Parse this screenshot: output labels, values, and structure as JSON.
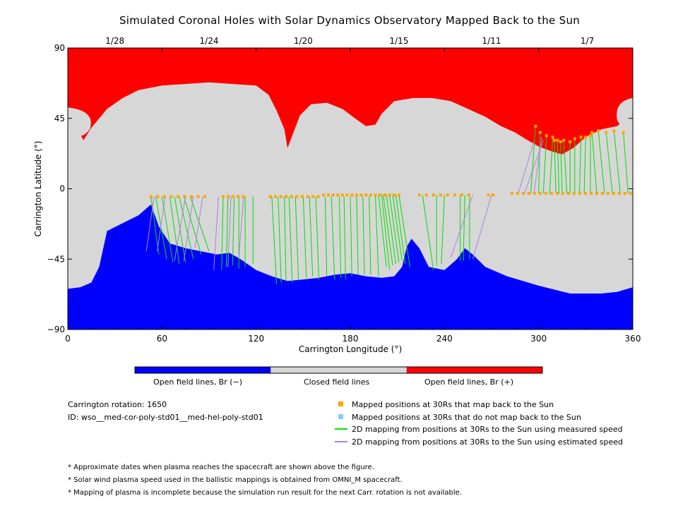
{
  "chart_data": {
    "type": "map",
    "title": "Simulated Coronal Holes with Solar Dynamics Observatory Mapped Back to the Sun",
    "xlabel": "Carrington Longitude (°)",
    "ylabel": "Carrington Latitude (°)",
    "xlim": [
      0,
      360
    ],
    "ylim": [
      -90,
      90
    ],
    "x_ticks": [
      "0",
      "60",
      "120",
      "180",
      "240",
      "300",
      "360"
    ],
    "y_ticks": [
      "90",
      "45",
      "0",
      "−45",
      "−90"
    ],
    "top_axis": {
      "dates": [
        {
          "label": "1/28",
          "lon": 30
        },
        {
          "label": "1/24",
          "lon": 90
        },
        {
          "label": "1/20",
          "lon": 150
        },
        {
          "label": "1/15",
          "lon": 211
        },
        {
          "label": "1/11",
          "lon": 270
        },
        {
          "label": "1/7",
          "lon": 331
        }
      ]
    },
    "regions": {
      "north_boundary": [
        [
          0,
          52
        ],
        [
          5,
          40
        ],
        [
          10,
          31
        ],
        [
          15,
          39
        ],
        [
          25,
          51
        ],
        [
          35,
          58
        ],
        [
          45,
          63
        ],
        [
          60,
          66
        ],
        [
          75,
          67
        ],
        [
          90,
          68
        ],
        [
          105,
          67
        ],
        [
          120,
          66
        ],
        [
          128,
          60
        ],
        [
          133,
          50
        ],
        [
          138,
          38
        ],
        [
          140,
          26
        ],
        [
          143,
          34
        ],
        [
          148,
          47
        ],
        [
          155,
          54
        ],
        [
          165,
          55
        ],
        [
          175,
          51
        ],
        [
          183,
          45
        ],
        [
          190,
          40
        ],
        [
          196,
          41
        ],
        [
          200,
          48
        ],
        [
          208,
          56
        ],
        [
          220,
          58
        ],
        [
          232,
          58
        ],
        [
          244,
          56
        ],
        [
          255,
          51
        ],
        [
          266,
          46
        ],
        [
          276,
          40
        ],
        [
          285,
          36
        ],
        [
          293,
          31
        ],
        [
          300,
          27
        ],
        [
          308,
          24
        ],
        [
          315,
          22
        ],
        [
          322,
          26
        ],
        [
          330,
          33
        ],
        [
          340,
          38
        ],
        [
          350,
          40
        ],
        [
          355,
          44
        ],
        [
          358,
          50
        ],
        [
          360,
          52
        ]
      ],
      "south_boundary": [
        [
          0,
          -64
        ],
        [
          8,
          -63
        ],
        [
          15,
          -60
        ],
        [
          20,
          -50
        ],
        [
          25,
          -27
        ],
        [
          35,
          -22
        ],
        [
          45,
          -17
        ],
        [
          53,
          -10
        ],
        [
          58,
          -24
        ],
        [
          65,
          -35
        ],
        [
          75,
          -38
        ],
        [
          85,
          -40
        ],
        [
          95,
          -42
        ],
        [
          103,
          -41
        ],
        [
          110,
          -45
        ],
        [
          120,
          -52
        ],
        [
          130,
          -56
        ],
        [
          140,
          -59
        ],
        [
          150,
          -58
        ],
        [
          160,
          -57
        ],
        [
          170,
          -55
        ],
        [
          180,
          -54
        ],
        [
          190,
          -56
        ],
        [
          200,
          -57
        ],
        [
          208,
          -56
        ],
        [
          213,
          -50
        ],
        [
          216,
          -37
        ],
        [
          219,
          -32
        ],
        [
          224,
          -38
        ],
        [
          230,
          -50
        ],
        [
          240,
          -52
        ],
        [
          248,
          -45
        ],
        [
          253,
          -38
        ],
        [
          258,
          -42
        ],
        [
          266,
          -50
        ],
        [
          280,
          -56
        ],
        [
          300,
          -62
        ],
        [
          320,
          -67
        ],
        [
          340,
          -67
        ],
        [
          350,
          -66
        ],
        [
          360,
          -63
        ]
      ],
      "colors": {
        "positive": "#ff0000",
        "closed": "#d7d7d7",
        "negative": "#0000ff"
      }
    },
    "mapped_points_lat": -5,
    "measured_mappings": [
      [
        58,
        -42
      ],
      [
        63,
        -45
      ],
      [
        67,
        -47
      ],
      [
        71,
        -48
      ],
      [
        75,
        -47
      ],
      [
        80,
        -45
      ],
      [
        85,
        -42
      ],
      [
        90,
        -40
      ],
      [
        98,
        -52
      ],
      [
        101,
        -50
      ],
      [
        105,
        -49
      ],
      [
        109,
        -51
      ],
      [
        113,
        -50
      ],
      [
        118,
        -48
      ],
      [
        133,
        -61
      ],
      [
        136,
        -60
      ],
      [
        139,
        -59
      ],
      [
        143,
        -60
      ],
      [
        147,
        -58
      ],
      [
        152,
        -57
      ],
      [
        156,
        -56
      ],
      [
        160,
        -58
      ],
      [
        165,
        -56
      ],
      [
        170,
        -58
      ],
      [
        174,
        -57
      ],
      [
        177,
        -58
      ],
      [
        181,
        -56
      ],
      [
        185,
        -55
      ],
      [
        189,
        -55
      ],
      [
        193,
        -55
      ],
      [
        198,
        -56
      ],
      [
        203,
        -50
      ],
      [
        205,
        -52
      ],
      [
        207,
        -49
      ],
      [
        209,
        -48
      ],
      [
        211,
        -47
      ],
      [
        213,
        -46
      ],
      [
        215,
        -48
      ],
      [
        218,
        -50
      ],
      [
        233,
        -52
      ],
      [
        235,
        -49
      ],
      [
        238,
        -48
      ],
      [
        250,
        -46
      ],
      [
        252,
        -46
      ],
      [
        256,
        -45
      ],
      [
        295,
        -3
      ],
      [
        300,
        -3
      ],
      [
        303,
        -3
      ],
      [
        307,
        -3
      ],
      [
        311,
        -3
      ],
      [
        313,
        -3
      ],
      [
        315,
        -3
      ],
      [
        318,
        -3
      ],
      [
        320,
        -3
      ],
      [
        323,
        -3
      ],
      [
        326,
        -3
      ],
      [
        329,
        -3
      ],
      [
        333,
        -3
      ],
      [
        337,
        -3
      ],
      [
        342,
        -3
      ],
      [
        347,
        -3
      ],
      [
        352,
        -3
      ],
      [
        357,
        -3
      ]
    ],
    "measured_mapping_origins": [
      [
        53,
        -5
      ],
      [
        56,
        -5
      ],
      [
        60,
        -5
      ],
      [
        65,
        -5
      ],
      [
        68,
        -5
      ],
      [
        71,
        -5
      ],
      [
        74,
        -5
      ],
      [
        78,
        -5
      ],
      [
        99,
        -5
      ],
      [
        102,
        -5
      ],
      [
        106,
        -5
      ],
      [
        109,
        -5
      ],
      [
        113,
        -5
      ],
      [
        118,
        -5
      ],
      [
        130,
        -5
      ],
      [
        134,
        -5
      ],
      [
        138,
        -5
      ],
      [
        141,
        -5
      ],
      [
        145,
        -5
      ],
      [
        150,
        -5
      ],
      [
        154,
        -5
      ],
      [
        158,
        -5
      ],
      [
        164,
        -5
      ],
      [
        168,
        -5
      ],
      [
        173,
        -5
      ],
      [
        176,
        -5
      ],
      [
        180,
        -5
      ],
      [
        184,
        -5
      ],
      [
        188,
        -5
      ],
      [
        192,
        -5
      ],
      [
        196,
        -4
      ],
      [
        198,
        -4
      ],
      [
        200,
        -4
      ],
      [
        201,
        -4
      ],
      [
        203,
        -4
      ],
      [
        205,
        -4
      ],
      [
        207,
        -4
      ],
      [
        209,
        -4
      ],
      [
        211,
        -4
      ],
      [
        226,
        -4
      ],
      [
        235,
        -4
      ],
      [
        240,
        -4
      ],
      [
        250,
        -4
      ],
      [
        253,
        -4
      ],
      [
        256,
        -4
      ],
      [
        298,
        40
      ],
      [
        301,
        36
      ],
      [
        305,
        34
      ],
      [
        309,
        33
      ],
      [
        310,
        31
      ],
      [
        312,
        31
      ],
      [
        314,
        30
      ],
      [
        316,
        31
      ],
      [
        320,
        30
      ],
      [
        323,
        32
      ],
      [
        327,
        33
      ],
      [
        330,
        33
      ],
      [
        333,
        34
      ],
      [
        334,
        36
      ],
      [
        338,
        37
      ],
      [
        343,
        36
      ],
      [
        348,
        37
      ],
      [
        354,
        36
      ]
    ],
    "estimated_mappings": [
      [
        [
          55,
          -5
        ],
        [
          50,
          -40
        ]
      ],
      [
        [
          62,
          -5
        ],
        [
          57,
          -40
        ]
      ],
      [
        [
          75,
          -5
        ],
        [
          68,
          -46
        ]
      ],
      [
        [
          80,
          -5
        ],
        [
          74,
          -46
        ]
      ],
      [
        [
          86,
          -5
        ],
        [
          81,
          -38
        ]
      ],
      [
        [
          96,
          -5
        ],
        [
          93,
          -52
        ]
      ],
      [
        [
          104,
          -5
        ],
        [
          102,
          -50
        ]
      ],
      [
        [
          112,
          -5
        ],
        [
          109,
          -44
        ]
      ],
      [
        [
          258,
          -4
        ],
        [
          244,
          -44
        ]
      ],
      [
        [
          270,
          -4
        ],
        [
          258,
          -45
        ]
      ],
      [
        [
          287,
          -3
        ],
        [
          297,
          30
        ]
      ],
      [
        [
          291,
          -3
        ],
        [
          303,
          31
        ]
      ],
      [
        [
          297,
          -3
        ],
        [
          302,
          33
        ]
      ]
    ]
  },
  "colorbar": {
    "left_label": "Open field lines, Br (−)",
    "middle_label": "Closed field lines",
    "right_label": "Open field lines, Br (+)",
    "colors": [
      "#0000ff",
      "#d7d7d7",
      "#ff0000"
    ]
  },
  "info": {
    "rotation": "Carrington rotation: 1650",
    "id": "ID: wso__med-cor-poly-std01__med-hel-poly-std01"
  },
  "legend": {
    "items": [
      {
        "label": "Mapped positions at 30Rs that map back to the Sun",
        "color": "#ffa500",
        "kind": "square"
      },
      {
        "label": "Mapped positions at 30Rs that do not map back to the Sun",
        "color": "#87cefa",
        "kind": "square"
      },
      {
        "label": "2D mapping from positions at 30Rs to the Sun using measured speed",
        "color": "#00e000",
        "kind": "line"
      },
      {
        "label": "2D mapping from positions at 30Rs to the Sun using estimated speed",
        "color": "#b07ee8",
        "kind": "line"
      }
    ]
  },
  "notes": [
    "* Approximate dates when plasma reaches the spacecraft are shown above the figure.",
    "* Solar wind plasma speed used in the ballistic mappings is obtained from OMNI_M spacecraft.",
    "* Mapping of plasma is incomplete because the simulation run result for the next Carr. rotation is not available."
  ]
}
